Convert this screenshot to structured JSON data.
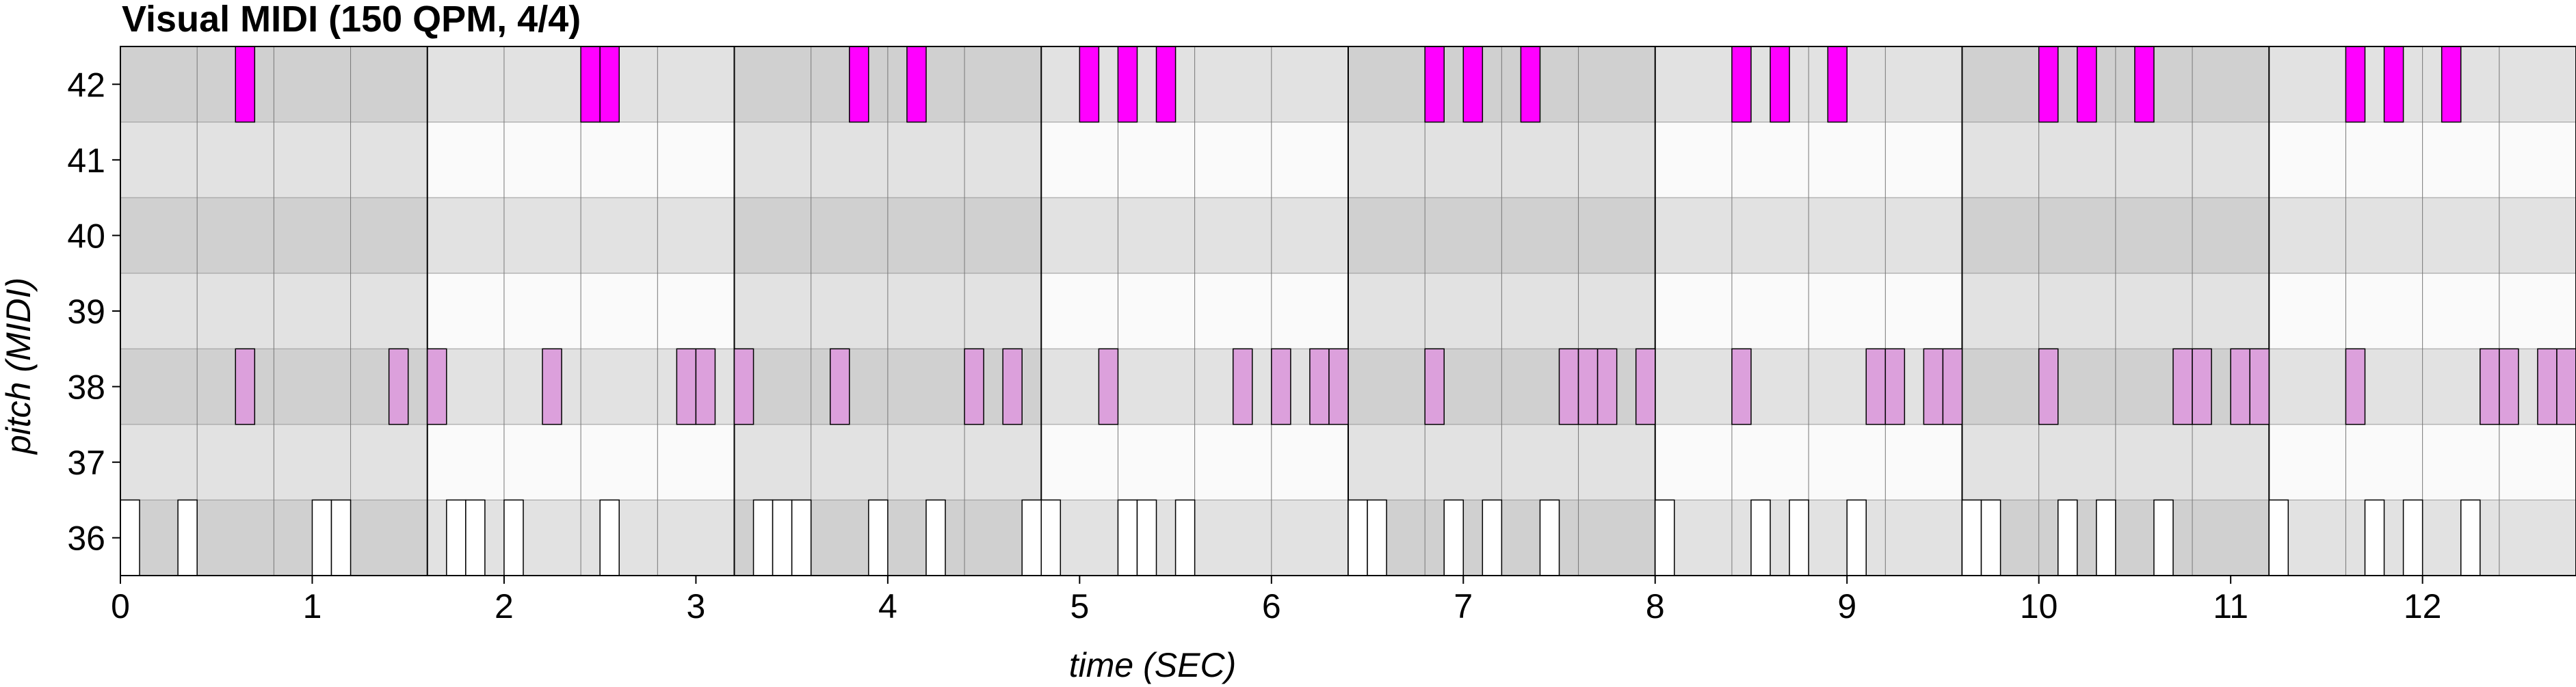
{
  "chart_data": {
    "type": "piano-roll",
    "title": "Visual MIDI (150 QPM, 4/4)",
    "xlabel": "time (SEC)",
    "ylabel": "pitch (MIDI)",
    "xlim": [
      0,
      12.8
    ],
    "ylim": [
      36,
      42
    ],
    "x_ticks": [
      0,
      1,
      2,
      3,
      4,
      5,
      6,
      7,
      8,
      9,
      10,
      11,
      12
    ],
    "y_ticks": [
      36,
      37,
      38,
      39,
      40,
      41,
      42
    ],
    "beat_seconds": 0.4,
    "beats_per_bar": 4,
    "note_duration": 0.1,
    "colors": {
      "pitch36": "#ffffff",
      "pitch38": "#dca0dc",
      "pitch42": "#ff00ff",
      "grid_dark": "#d0d0d0",
      "grid_mid": "#e2e2e2",
      "grid_light": "#fafafa"
    },
    "notes": [
      {
        "pitch": 36,
        "starts": [
          0.0,
          0.3,
          1.0,
          1.1,
          1.7,
          1.8,
          2.0,
          2.5,
          3.3,
          3.4,
          3.5,
          3.9,
          4.2,
          4.7,
          4.8,
          5.2,
          5.3,
          5.5,
          6.4,
          6.5,
          6.9,
          7.1,
          7.4,
          8.0,
          8.5,
          8.7,
          9.0,
          9.6,
          9.7,
          10.1,
          10.3,
          10.6,
          11.2,
          11.7,
          11.9,
          12.2
        ]
      },
      {
        "pitch": 38,
        "starts": [
          0.6,
          1.4,
          1.6,
          2.2,
          2.9,
          3.0,
          3.2,
          3.7,
          4.4,
          4.6,
          5.1,
          5.8,
          6.0,
          6.2,
          6.3,
          6.8,
          7.5,
          7.6,
          7.7,
          7.9,
          8.4,
          9.1,
          9.2,
          9.4,
          9.5,
          10.0,
          10.7,
          10.8,
          11.0,
          11.1,
          11.6,
          12.3,
          12.4,
          12.6,
          12.7
        ]
      },
      {
        "pitch": 42,
        "starts": [
          0.6,
          2.4,
          2.5,
          3.8,
          4.1,
          5.0,
          5.2,
          5.4,
          6.8,
          7.0,
          7.3,
          8.4,
          8.6,
          8.9,
          10.0,
          10.2,
          10.5,
          11.6,
          11.8,
          12.1
        ]
      }
    ]
  }
}
